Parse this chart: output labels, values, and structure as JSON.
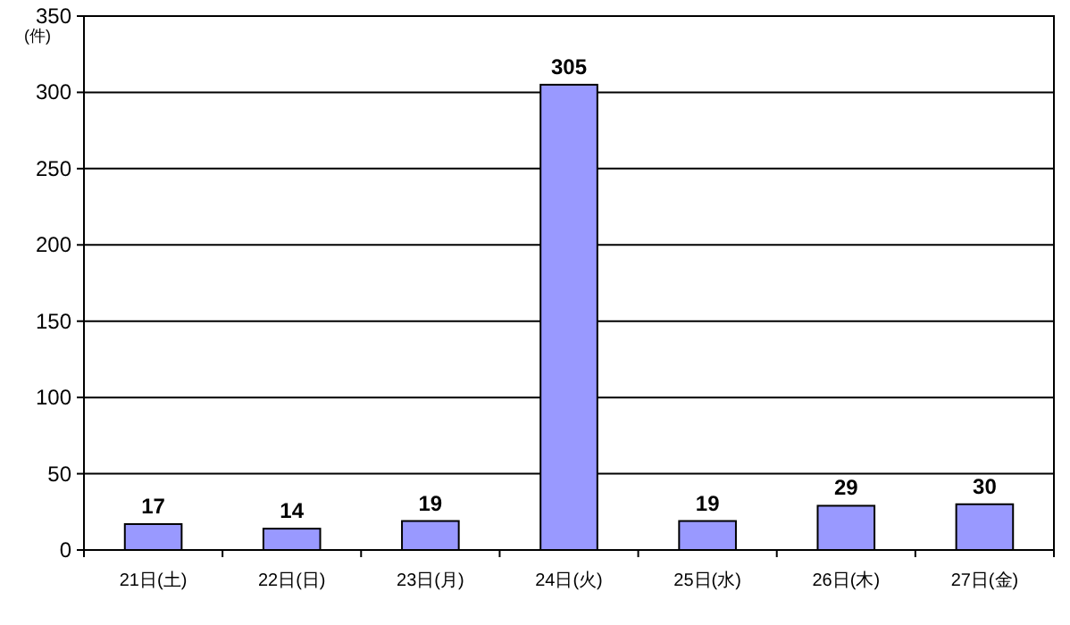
{
  "chart_data": {
    "type": "bar",
    "ylabel": "(件)",
    "categories": [
      "21日(土)",
      "22日(日)",
      "23日(月)",
      "24日(火)",
      "25日(水)",
      "26日(木)",
      "27日(金)"
    ],
    "values": [
      17,
      14,
      19,
      305,
      19,
      29,
      30
    ],
    "color": "#9999ff",
    "ylim": [
      0,
      350
    ],
    "yticks": [
      0,
      50,
      100,
      150,
      200,
      250,
      300,
      350
    ],
    "grid": "y",
    "data_labels": true
  }
}
